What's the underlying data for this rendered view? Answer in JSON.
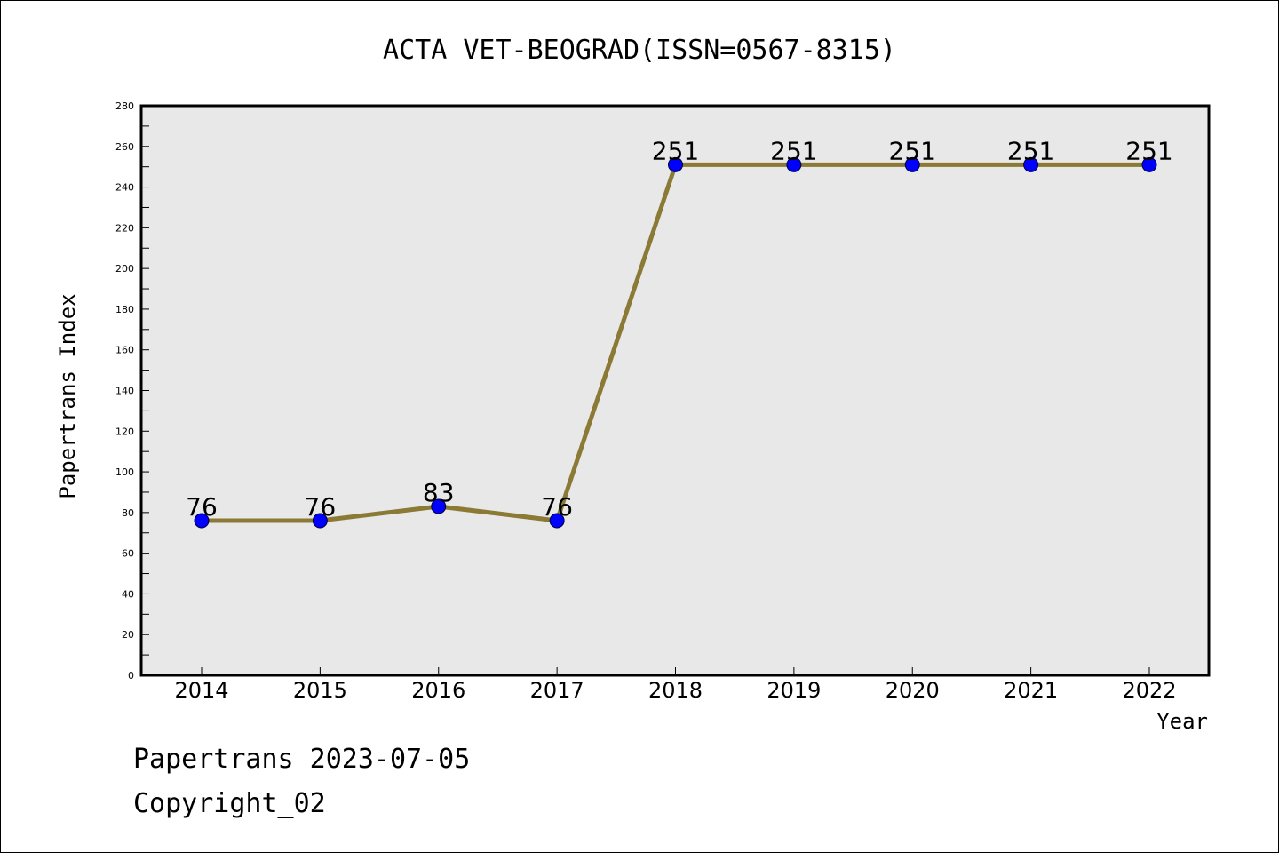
{
  "chart_data": {
    "type": "line",
    "title": "ACTA VET-BEOGRAD(ISSN=0567-8315)",
    "xlabel": "Year",
    "ylabel": "Papertrans Index",
    "categories": [
      "2014",
      "2015",
      "2016",
      "2017",
      "2018",
      "2019",
      "2020",
      "2021",
      "2022"
    ],
    "values": [
      76,
      76,
      83,
      76,
      251,
      251,
      251,
      251,
      251
    ],
    "ylim": [
      0,
      280
    ],
    "yticks": [
      0,
      20,
      40,
      60,
      80,
      100,
      120,
      140,
      160,
      180,
      200,
      220,
      240,
      260,
      280
    ],
    "grid": false,
    "legend": "none",
    "line_color": "#8b7a35",
    "marker_color": "#0000ff",
    "plot_background": "#e8e8e8"
  },
  "footer": {
    "line1": "Papertrans 2023-07-05",
    "line2": "Copyright_02"
  }
}
